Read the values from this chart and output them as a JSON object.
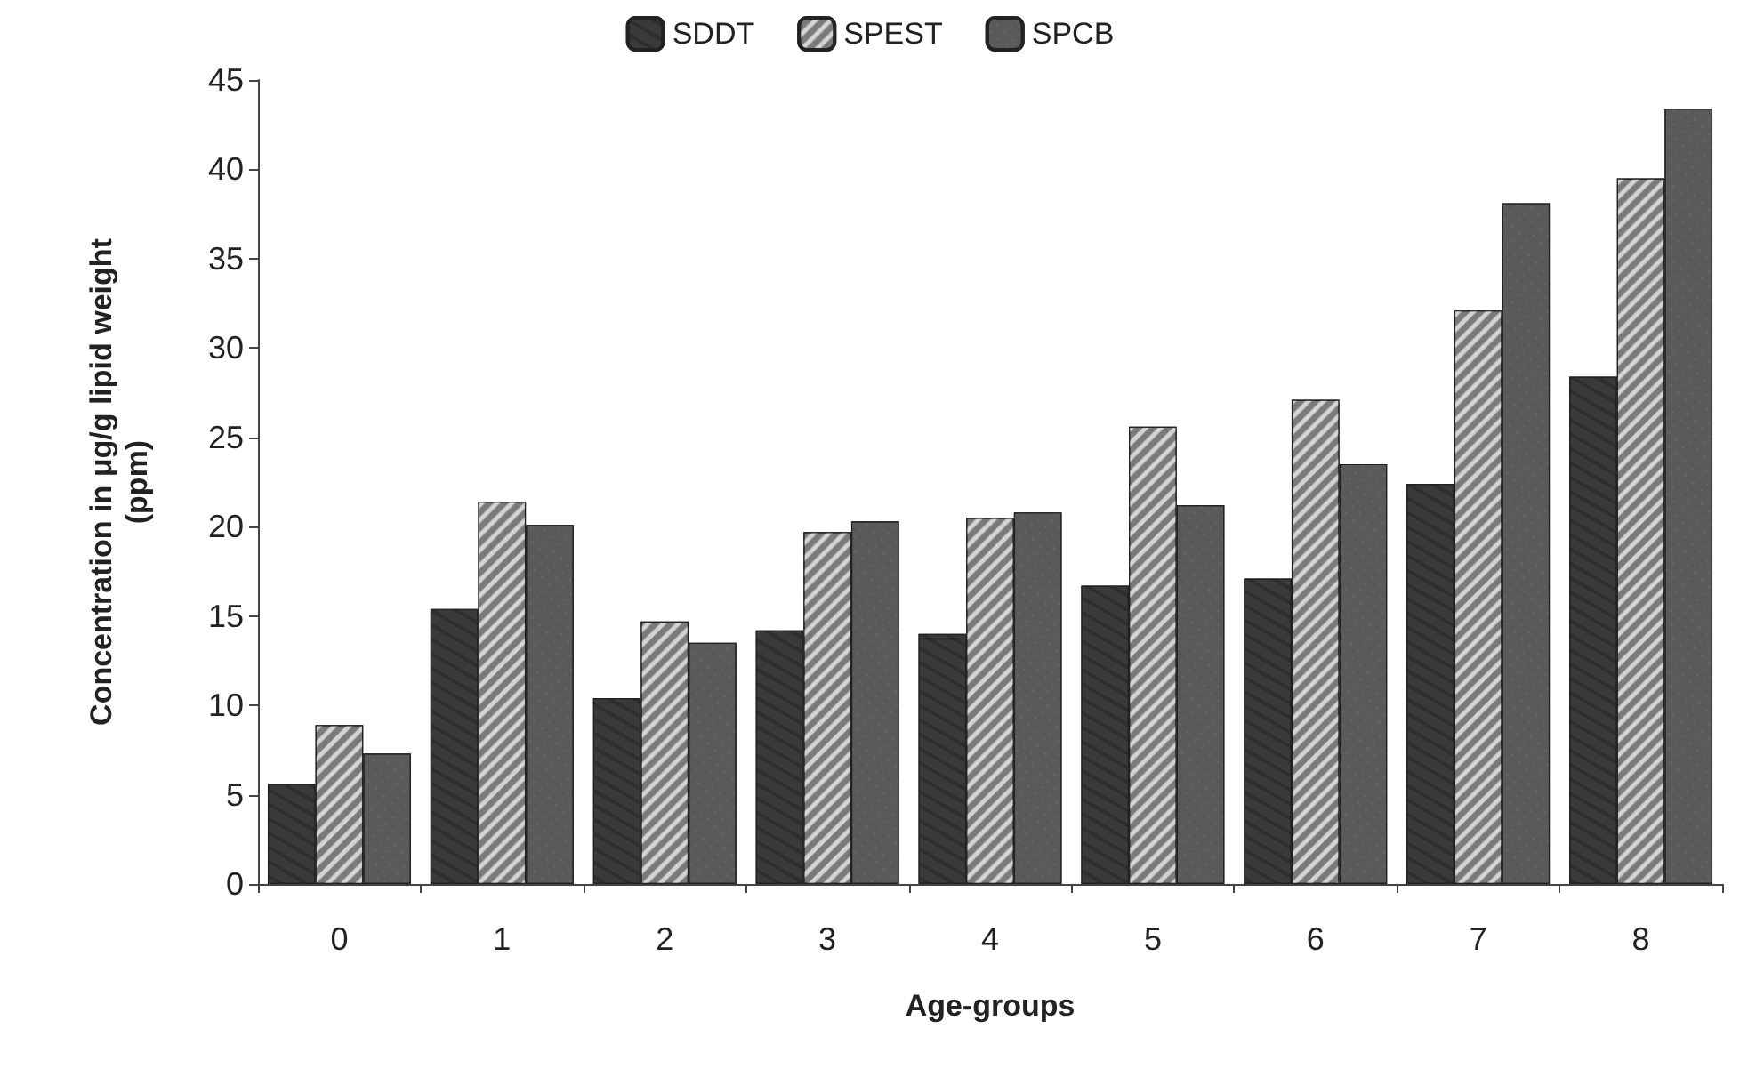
{
  "chart_data": {
    "type": "bar",
    "xlabel": "Age-groups",
    "ylabel": "Concentration in μg/g lipid weight\n(ppm)",
    "categories": [
      "0",
      "1",
      "2",
      "3",
      "4",
      "5",
      "6",
      "7",
      "8"
    ],
    "series": [
      {
        "name": "SDDT",
        "color": "#3a3a3a",
        "values": [
          5.6,
          15.4,
          10.4,
          14.2,
          14.0,
          16.7,
          17.1,
          22.4,
          28.4
        ]
      },
      {
        "name": "SPEST",
        "color": "#7a7a7a",
        "values": [
          8.9,
          21.4,
          14.7,
          19.7,
          20.5,
          25.6,
          27.1,
          32.1,
          39.5
        ]
      },
      {
        "name": "SPCB",
        "color": "#5a5a5a",
        "values": [
          7.3,
          20.1,
          13.5,
          20.3,
          20.8,
          21.2,
          23.5,
          38.1,
          43.4
        ]
      }
    ],
    "ylim": [
      0,
      45
    ],
    "yticks": [
      0,
      5,
      10,
      15,
      20,
      25,
      30,
      35,
      40,
      45
    ],
    "grid": false,
    "legend": "top"
  }
}
